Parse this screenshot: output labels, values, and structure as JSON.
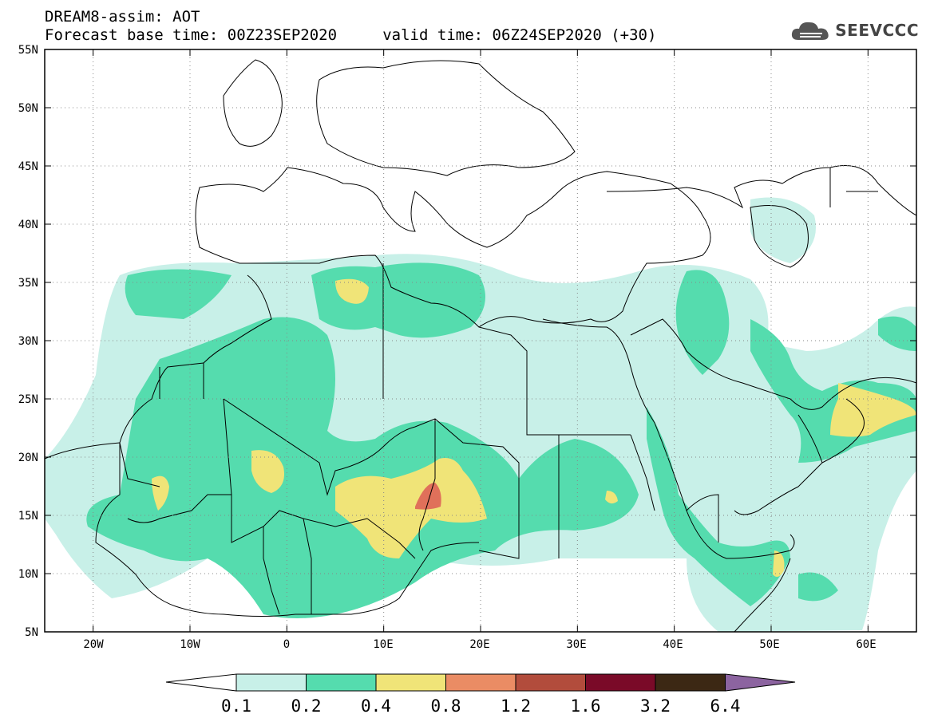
{
  "title": {
    "line1": "DREAM8-assim: AOT",
    "line2": "Forecast base time: 00Z23SEP2020     valid time: 06Z24SEP2020 (+30)"
  },
  "logo": {
    "text": "SEEVCCC",
    "icon": "cloud-icon"
  },
  "map": {
    "lat_labels": [
      "55N",
      "50N",
      "45N",
      "40N",
      "35N",
      "30N",
      "25N",
      "20N",
      "15N",
      "10N",
      "5N"
    ],
    "lon_labels": [
      "20W",
      "10W",
      "0",
      "10E",
      "20E",
      "30E",
      "40E",
      "50E",
      "60E"
    ],
    "lon_range": [
      -25,
      65
    ],
    "lat_range": [
      5,
      55
    ]
  },
  "colorbar": {
    "labels": [
      "0.1",
      "0.2",
      "0.4",
      "0.8",
      "1.2",
      "1.6",
      "3.2",
      "6.4"
    ],
    "colors": [
      "#ffffff",
      "#c8f0e8",
      "#55dcae",
      "#f0e478",
      "#ea8c64",
      "#b24c3c",
      "#7a0a28",
      "#3c2814",
      "#8c64a0"
    ]
  },
  "aot_colors": {
    "c1": "#c8f0e8",
    "c2": "#55dcae",
    "c3": "#f0e478",
    "c4": "#e0705a"
  }
}
